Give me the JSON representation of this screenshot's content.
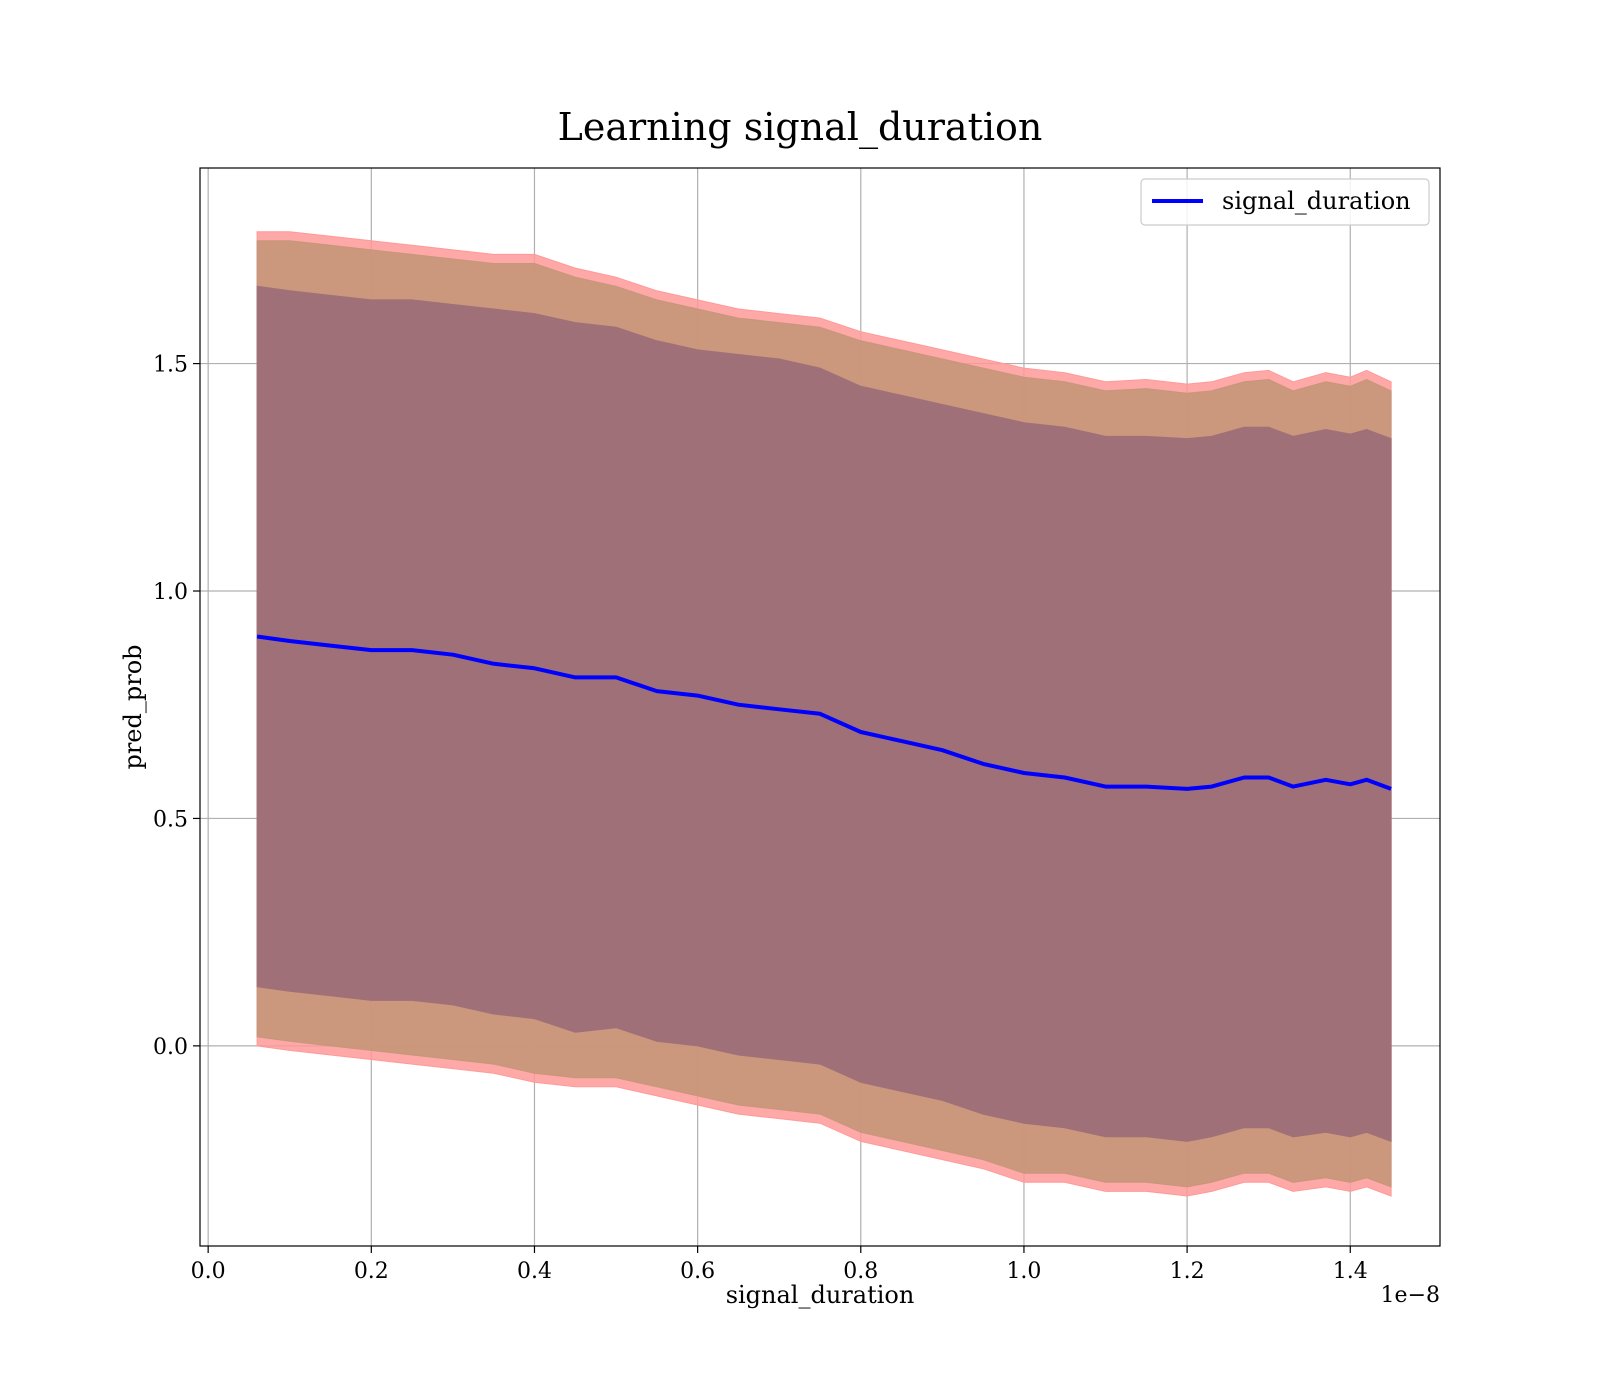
{
  "chart_data": {
    "type": "line",
    "title": "Learning signal_duration",
    "xlabel": "signal_duration",
    "ylabel": "pred_prob",
    "x_offset_label": "1e−8",
    "xlim": [
      -0.01,
      1.51
    ],
    "ylim": [
      -0.44,
      1.93
    ],
    "xticks": [
      0.0,
      0.2,
      0.4,
      0.6,
      0.8,
      1.0,
      1.2,
      1.4
    ],
    "xtick_labels": [
      "0.0",
      "0.2",
      "0.4",
      "0.6",
      "0.8",
      "1.0",
      "1.2",
      "1.4"
    ],
    "yticks": [
      0.0,
      0.5,
      1.0,
      1.5
    ],
    "ytick_labels": [
      "0.0",
      "0.5",
      "1.0",
      "1.5"
    ],
    "grid": true,
    "legend": {
      "position": "top-right",
      "entries": [
        "signal_duration"
      ]
    },
    "colors": {
      "line": "#0000ff",
      "outer_band": "#ff9999",
      "middle_band": "#c8967a",
      "inner_band": "#a07078"
    },
    "x": [
      0.06,
      0.1,
      0.15,
      0.2,
      0.25,
      0.3,
      0.35,
      0.4,
      0.45,
      0.5,
      0.55,
      0.6,
      0.65,
      0.7,
      0.75,
      0.8,
      0.85,
      0.9,
      0.95,
      1.0,
      1.05,
      1.1,
      1.15,
      1.2,
      1.23,
      1.27,
      1.3,
      1.33,
      1.37,
      1.4,
      1.42,
      1.45
    ],
    "series": [
      {
        "name": "signal_duration",
        "values": [
          0.9,
          0.89,
          0.88,
          0.87,
          0.87,
          0.86,
          0.84,
          0.83,
          0.81,
          0.81,
          0.78,
          0.77,
          0.75,
          0.74,
          0.73,
          0.69,
          0.67,
          0.65,
          0.62,
          0.6,
          0.59,
          0.57,
          0.57,
          0.565,
          0.57,
          0.59,
          0.59,
          0.57,
          0.585,
          0.575,
          0.585,
          0.565
        ]
      }
    ],
    "bands": [
      {
        "role": "outer",
        "upper": [
          1.79,
          1.79,
          1.78,
          1.77,
          1.76,
          1.75,
          1.74,
          1.74,
          1.71,
          1.69,
          1.66,
          1.64,
          1.62,
          1.61,
          1.6,
          1.57,
          1.55,
          1.53,
          1.51,
          1.49,
          1.48,
          1.46,
          1.465,
          1.455,
          1.46,
          1.48,
          1.485,
          1.46,
          1.48,
          1.47,
          1.485,
          1.46
        ],
        "lower": [
          0.0,
          -0.01,
          -0.02,
          -0.03,
          -0.04,
          -0.05,
          -0.06,
          -0.08,
          -0.09,
          -0.09,
          -0.11,
          -0.13,
          -0.15,
          -0.16,
          -0.17,
          -0.21,
          -0.23,
          -0.25,
          -0.27,
          -0.3,
          -0.3,
          -0.32,
          -0.32,
          -0.33,
          -0.32,
          -0.3,
          -0.3,
          -0.32,
          -0.31,
          -0.32,
          -0.31,
          -0.33
        ]
      },
      {
        "role": "middle",
        "upper": [
          1.77,
          1.77,
          1.76,
          1.75,
          1.74,
          1.73,
          1.72,
          1.72,
          1.69,
          1.67,
          1.64,
          1.62,
          1.6,
          1.59,
          1.58,
          1.55,
          1.53,
          1.51,
          1.49,
          1.47,
          1.46,
          1.44,
          1.445,
          1.435,
          1.44,
          1.46,
          1.465,
          1.44,
          1.46,
          1.45,
          1.465,
          1.44
        ],
        "lower": [
          0.02,
          0.01,
          0.0,
          -0.01,
          -0.02,
          -0.03,
          -0.04,
          -0.06,
          -0.07,
          -0.07,
          -0.09,
          -0.11,
          -0.13,
          -0.14,
          -0.15,
          -0.19,
          -0.21,
          -0.23,
          -0.25,
          -0.28,
          -0.28,
          -0.3,
          -0.3,
          -0.31,
          -0.3,
          -0.28,
          -0.28,
          -0.3,
          -0.29,
          -0.3,
          -0.29,
          -0.31
        ]
      },
      {
        "role": "inner",
        "upper": [
          1.67,
          1.66,
          1.65,
          1.64,
          1.64,
          1.63,
          1.62,
          1.61,
          1.59,
          1.58,
          1.55,
          1.53,
          1.52,
          1.51,
          1.49,
          1.45,
          1.43,
          1.41,
          1.39,
          1.37,
          1.36,
          1.34,
          1.34,
          1.335,
          1.34,
          1.36,
          1.36,
          1.34,
          1.355,
          1.345,
          1.355,
          1.335
        ],
        "lower": [
          0.13,
          0.12,
          0.11,
          0.1,
          0.1,
          0.09,
          0.07,
          0.06,
          0.03,
          0.04,
          0.01,
          0.0,
          -0.02,
          -0.03,
          -0.04,
          -0.08,
          -0.1,
          -0.12,
          -0.15,
          -0.17,
          -0.18,
          -0.2,
          -0.2,
          -0.21,
          -0.2,
          -0.18,
          -0.18,
          -0.2,
          -0.19,
          -0.2,
          -0.19,
          -0.21
        ]
      }
    ]
  }
}
